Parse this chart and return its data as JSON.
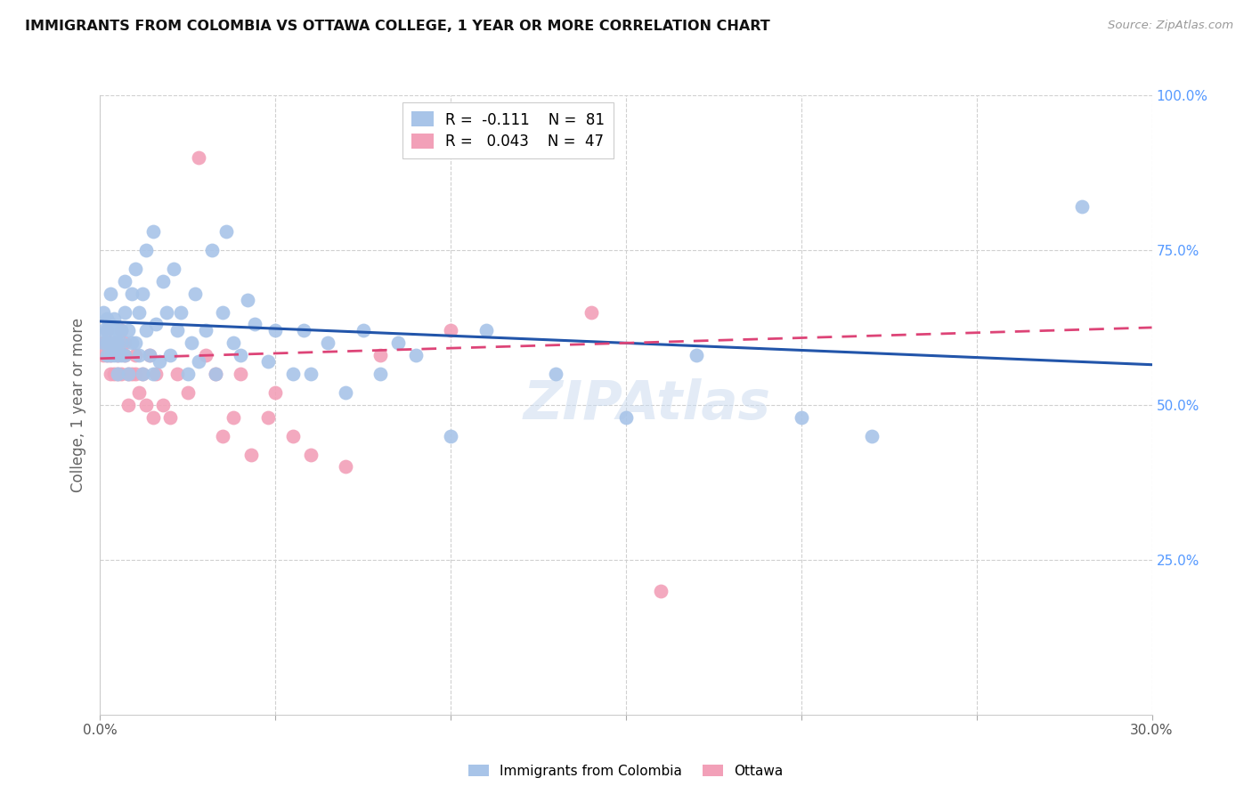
{
  "title": "IMMIGRANTS FROM COLOMBIA VS OTTAWA COLLEGE, 1 YEAR OR MORE CORRELATION CHART",
  "source": "Source: ZipAtlas.com",
  "ylabel": "College, 1 year or more",
  "x_min": 0.0,
  "x_max": 0.3,
  "y_min": 0.0,
  "y_max": 1.0,
  "x_ticks": [
    0.0,
    0.05,
    0.1,
    0.15,
    0.2,
    0.25,
    0.3
  ],
  "y_ticks": [
    0.0,
    0.25,
    0.5,
    0.75,
    1.0
  ],
  "y_tick_labels_right": [
    "",
    "25.0%",
    "50.0%",
    "75.0%",
    "100.0%"
  ],
  "blue_color": "#a8c4e8",
  "pink_color": "#f2a0b8",
  "blue_line_color": "#2255aa",
  "pink_line_color": "#dd4477",
  "grid_color": "#d0d0d0",
  "watermark": "ZIPAtlas",
  "colombia_points_x": [
    0.001,
    0.001,
    0.001,
    0.002,
    0.002,
    0.002,
    0.002,
    0.003,
    0.003,
    0.003,
    0.003,
    0.004,
    0.004,
    0.004,
    0.004,
    0.005,
    0.005,
    0.005,
    0.005,
    0.006,
    0.006,
    0.006,
    0.007,
    0.007,
    0.007,
    0.008,
    0.008,
    0.009,
    0.009,
    0.01,
    0.01,
    0.011,
    0.011,
    0.012,
    0.012,
    0.013,
    0.013,
    0.014,
    0.015,
    0.015,
    0.016,
    0.017,
    0.018,
    0.019,
    0.02,
    0.021,
    0.022,
    0.023,
    0.025,
    0.026,
    0.027,
    0.028,
    0.03,
    0.032,
    0.033,
    0.035,
    0.036,
    0.038,
    0.04,
    0.042,
    0.044,
    0.048,
    0.05,
    0.055,
    0.058,
    0.06,
    0.065,
    0.07,
    0.075,
    0.08,
    0.085,
    0.09,
    0.1,
    0.11,
    0.13,
    0.15,
    0.17,
    0.2,
    0.22,
    0.28
  ],
  "colombia_points_y": [
    0.6,
    0.62,
    0.65,
    0.6,
    0.62,
    0.58,
    0.64,
    0.6,
    0.58,
    0.63,
    0.68,
    0.6,
    0.58,
    0.62,
    0.64,
    0.6,
    0.58,
    0.62,
    0.55,
    0.62,
    0.58,
    0.6,
    0.7,
    0.65,
    0.58,
    0.62,
    0.55,
    0.68,
    0.6,
    0.72,
    0.6,
    0.65,
    0.58,
    0.55,
    0.68,
    0.75,
    0.62,
    0.58,
    0.55,
    0.78,
    0.63,
    0.57,
    0.7,
    0.65,
    0.58,
    0.72,
    0.62,
    0.65,
    0.55,
    0.6,
    0.68,
    0.57,
    0.62,
    0.75,
    0.55,
    0.65,
    0.78,
    0.6,
    0.58,
    0.67,
    0.63,
    0.57,
    0.62,
    0.55,
    0.62,
    0.55,
    0.6,
    0.52,
    0.62,
    0.55,
    0.6,
    0.58,
    0.45,
    0.62,
    0.55,
    0.48,
    0.58,
    0.48,
    0.45,
    0.82
  ],
  "ottawa_points_x": [
    0.001,
    0.001,
    0.002,
    0.002,
    0.003,
    0.003,
    0.003,
    0.004,
    0.004,
    0.005,
    0.005,
    0.005,
    0.006,
    0.006,
    0.007,
    0.007,
    0.008,
    0.008,
    0.009,
    0.01,
    0.01,
    0.011,
    0.012,
    0.013,
    0.014,
    0.015,
    0.016,
    0.018,
    0.02,
    0.022,
    0.025,
    0.028,
    0.03,
    0.033,
    0.035,
    0.038,
    0.04,
    0.043,
    0.048,
    0.05,
    0.055,
    0.06,
    0.07,
    0.08,
    0.1,
    0.14,
    0.16
  ],
  "ottawa_points_y": [
    0.6,
    0.58,
    0.58,
    0.62,
    0.6,
    0.55,
    0.58,
    0.55,
    0.6,
    0.58,
    0.55,
    0.6,
    0.62,
    0.55,
    0.6,
    0.58,
    0.55,
    0.5,
    0.55,
    0.58,
    0.55,
    0.52,
    0.55,
    0.5,
    0.58,
    0.48,
    0.55,
    0.5,
    0.48,
    0.55,
    0.52,
    0.9,
    0.58,
    0.55,
    0.45,
    0.48,
    0.55,
    0.42,
    0.48,
    0.52,
    0.45,
    0.42,
    0.4,
    0.58,
    0.62,
    0.65,
    0.2
  ]
}
